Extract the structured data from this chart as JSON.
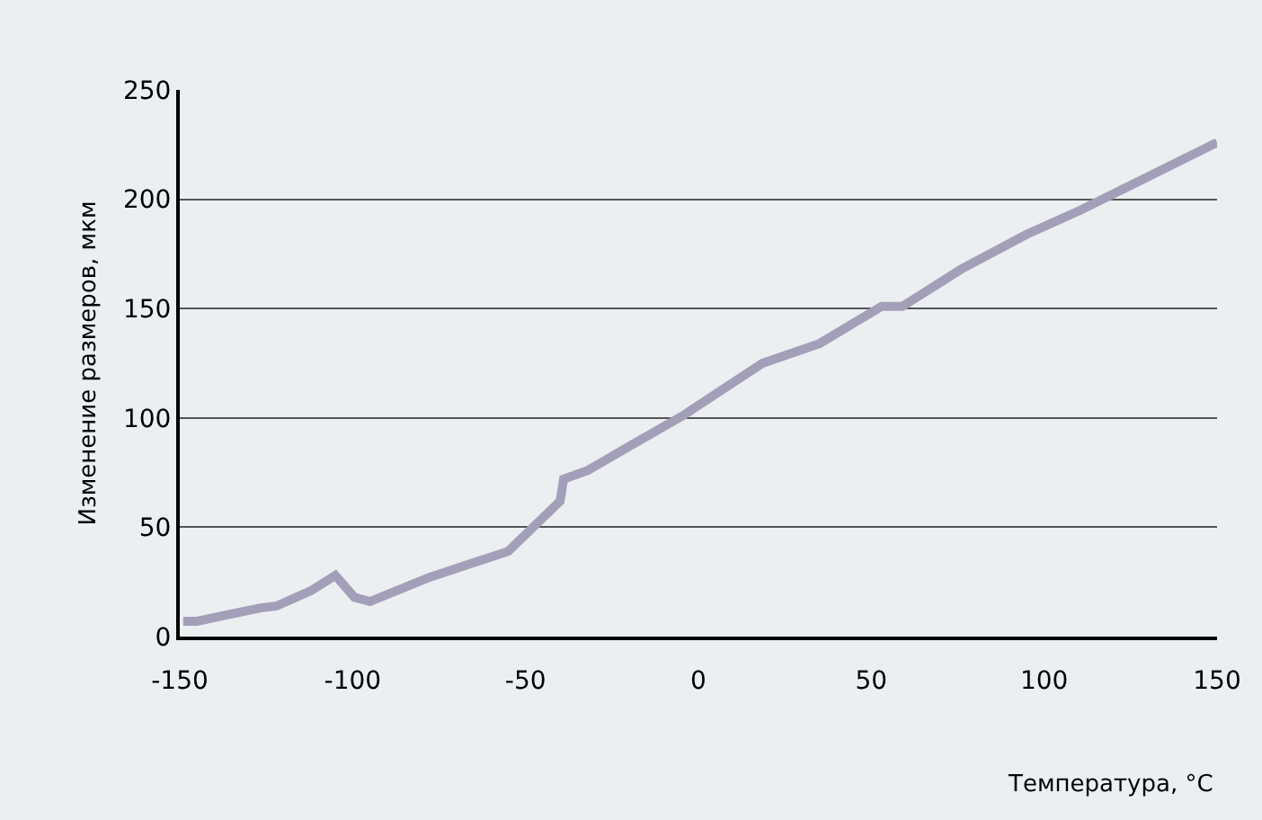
{
  "chart_data": {
    "type": "line",
    "xlabel": "Температура, °С",
    "ylabel": "Изменение размеров, мкм",
    "x": [
      -149,
      -145,
      -127,
      -122,
      -112,
      -105,
      -99.5,
      -95,
      -78,
      -55,
      -40,
      -39,
      -32,
      -20,
      -4.5,
      18.5,
      35,
      53,
      59,
      76,
      95,
      110.5,
      150
    ],
    "series": [
      {
        "color": "#a49fb8",
        "values": [
          7,
          7,
          13,
          14,
          21,
          28,
          18,
          16,
          27,
          39,
          62,
          72,
          76,
          87,
          101,
          125,
          134,
          151,
          151,
          168,
          184,
          195,
          226
        ]
      }
    ],
    "xlim": [
      -150,
      150
    ],
    "xticks": [
      -150,
      -100,
      -50,
      0,
      50,
      100,
      150
    ],
    "ylim": [
      0,
      250
    ],
    "yticks": [
      0,
      50,
      100,
      150,
      200,
      250
    ],
    "grid": "y",
    "marker": "none",
    "line_style": "solid"
  }
}
